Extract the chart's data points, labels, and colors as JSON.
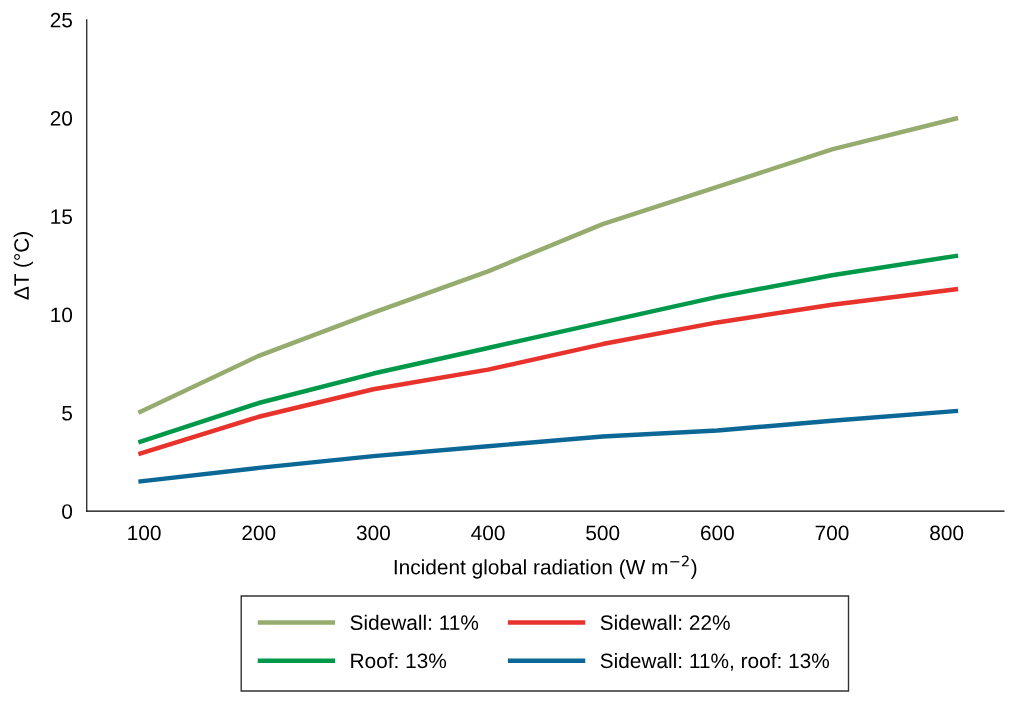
{
  "chart_data": {
    "type": "line",
    "xlabel": "Incident global radiation (W m$^{−2}$)",
    "ylabel": "ΔT (°C)",
    "x": [
      95,
      200,
      300,
      400,
      500,
      600,
      700,
      810
    ],
    "series": [
      {
        "name": "Sidewall: 11%",
        "color": "#96ac6e",
        "values": [
          5.0,
          7.9,
          10.1,
          12.2,
          14.6,
          16.5,
          18.4,
          20.0
        ]
      },
      {
        "name": "Roof: 13%",
        "color": "#00994a",
        "values": [
          3.5,
          5.5,
          7.0,
          8.3,
          9.6,
          10.9,
          12.0,
          13.0
        ]
      },
      {
        "name": "Sidewall: 22%",
        "color": "#e8322c",
        "values": [
          2.9,
          4.8,
          6.2,
          7.2,
          8.5,
          9.6,
          10.5,
          11.3
        ]
      },
      {
        "name": "Sidewall: 11%, roof: 13%",
        "color": "#0b6896",
        "values": [
          1.5,
          2.2,
          2.8,
          3.3,
          3.8,
          4.1,
          4.6,
          5.1
        ]
      }
    ],
    "xlim": [
      50,
      850
    ],
    "ylim": [
      0,
      25
    ],
    "xticks": [
      100,
      200,
      300,
      400,
      500,
      600,
      700,
      800
    ],
    "yticks": [
      0,
      5,
      10,
      15,
      20,
      25
    ],
    "grid": false,
    "legend": "bottom",
    "marker": "none",
    "line_style": "solid"
  }
}
